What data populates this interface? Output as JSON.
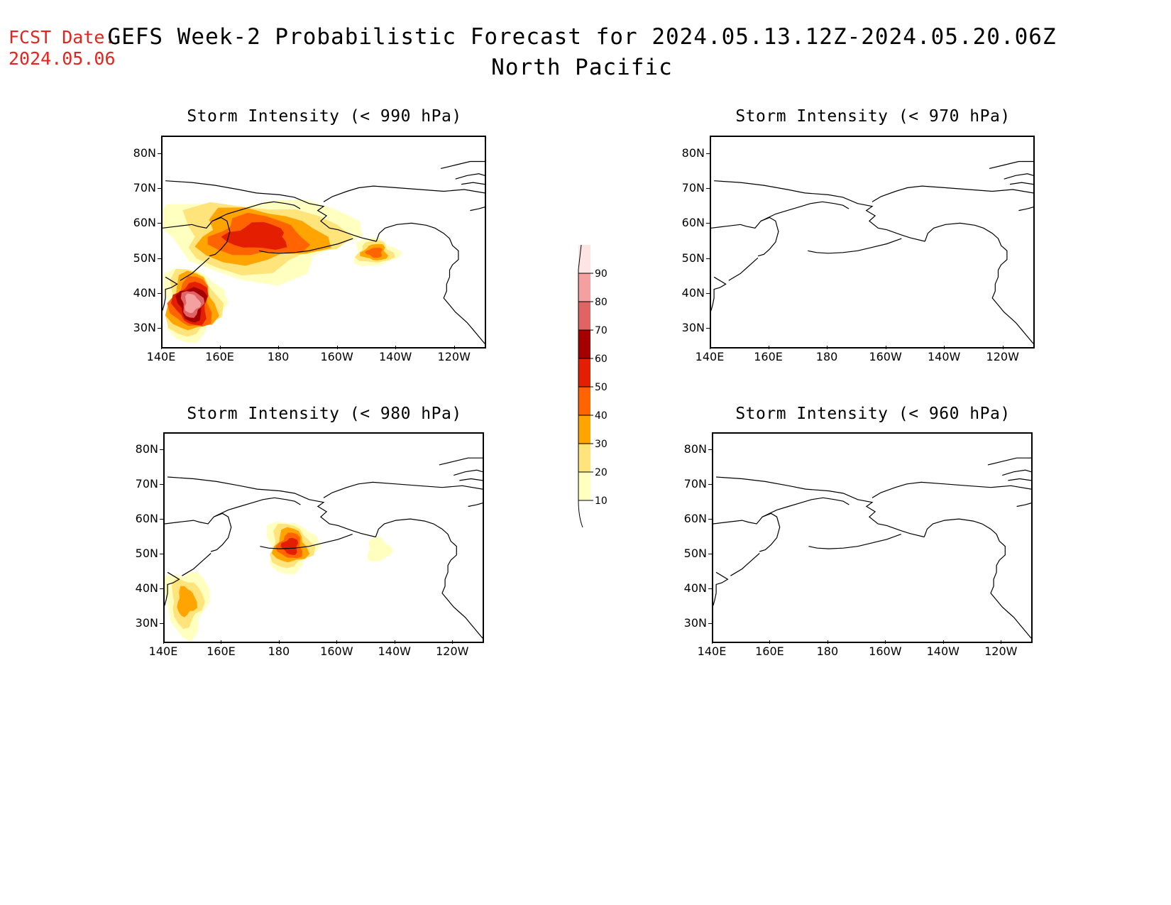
{
  "fcst_label": "FCST Date:",
  "fcst_date": "2024.05.06",
  "title_line1": "GEFS Week-2 Probabilistic Forecast for 2024.05.13.12Z-2024.05.20.06Z",
  "title_line2": "North Pacific",
  "colorbar": {
    "levels": [
      10,
      20,
      30,
      40,
      50,
      60,
      70,
      80,
      90
    ],
    "level_labels": [
      "10",
      "20",
      "30",
      "40",
      "50",
      "60",
      "70",
      "80",
      "90"
    ],
    "colors": [
      "#ffffc0",
      "#ffe47c",
      "#ffa400",
      "#ff6400",
      "#e41e00",
      "#a40000",
      "#e06464",
      "#f4a0a0",
      "#ffe4e4"
    ]
  },
  "chart_data": [
    {
      "type": "heatmap",
      "title": "Storm Intensity (< 990 hPa)",
      "xticks": [
        "140E",
        "160E",
        "180",
        "160W",
        "140W",
        "120W"
      ],
      "yticks": [
        "80N",
        "70N",
        "60N",
        "50N",
        "40N",
        "30N"
      ],
      "lon_range": [
        140,
        250
      ],
      "lat_range": [
        25,
        85
      ],
      "shaded_regions": [
        {
          "lon": [
            140,
            205
          ],
          "lat": [
            45,
            68
          ],
          "max_prob": 50
        },
        {
          "lon": [
            140,
            160
          ],
          "lat": [
            27,
            48
          ],
          "max_prob": 80
        },
        {
          "lon": [
            205,
            220
          ],
          "lat": [
            48,
            56
          ],
          "max_prob": 40
        }
      ]
    },
    {
      "type": "heatmap",
      "title": "Storm Intensity (< 970 hPa)",
      "xticks": [
        "140E",
        "160E",
        "180",
        "160W",
        "140W",
        "120W"
      ],
      "yticks": [
        "80N",
        "70N",
        "60N",
        "50N",
        "40N",
        "30N"
      ],
      "lon_range": [
        140,
        250
      ],
      "lat_range": [
        25,
        85
      ],
      "shaded_regions": []
    },
    {
      "type": "heatmap",
      "title": "Storm Intensity (< 980 hPa)",
      "xticks": [
        "140E",
        "160E",
        "180",
        "160W",
        "140W",
        "120W"
      ],
      "yticks": [
        "80N",
        "70N",
        "60N",
        "50N",
        "40N",
        "30N"
      ],
      "lon_range": [
        140,
        250
      ],
      "lat_range": [
        25,
        85
      ],
      "shaded_regions": [
        {
          "lon": [
            140,
            155
          ],
          "lat": [
            27,
            46
          ],
          "max_prob": 30
        },
        {
          "lon": [
            175,
            192
          ],
          "lat": [
            45,
            60
          ],
          "max_prob": 50
        },
        {
          "lon": [
            210,
            218
          ],
          "lat": [
            48,
            55
          ],
          "max_prob": 10
        }
      ]
    },
    {
      "type": "heatmap",
      "title": "Storm Intensity (< 960 hPa)",
      "xticks": [
        "140E",
        "160E",
        "180",
        "160W",
        "140W",
        "120W"
      ],
      "yticks": [
        "80N",
        "70N",
        "60N",
        "50N",
        "40N",
        "30N"
      ],
      "lon_range": [
        140,
        250
      ],
      "lat_range": [
        25,
        85
      ],
      "shaded_regions": []
    }
  ]
}
